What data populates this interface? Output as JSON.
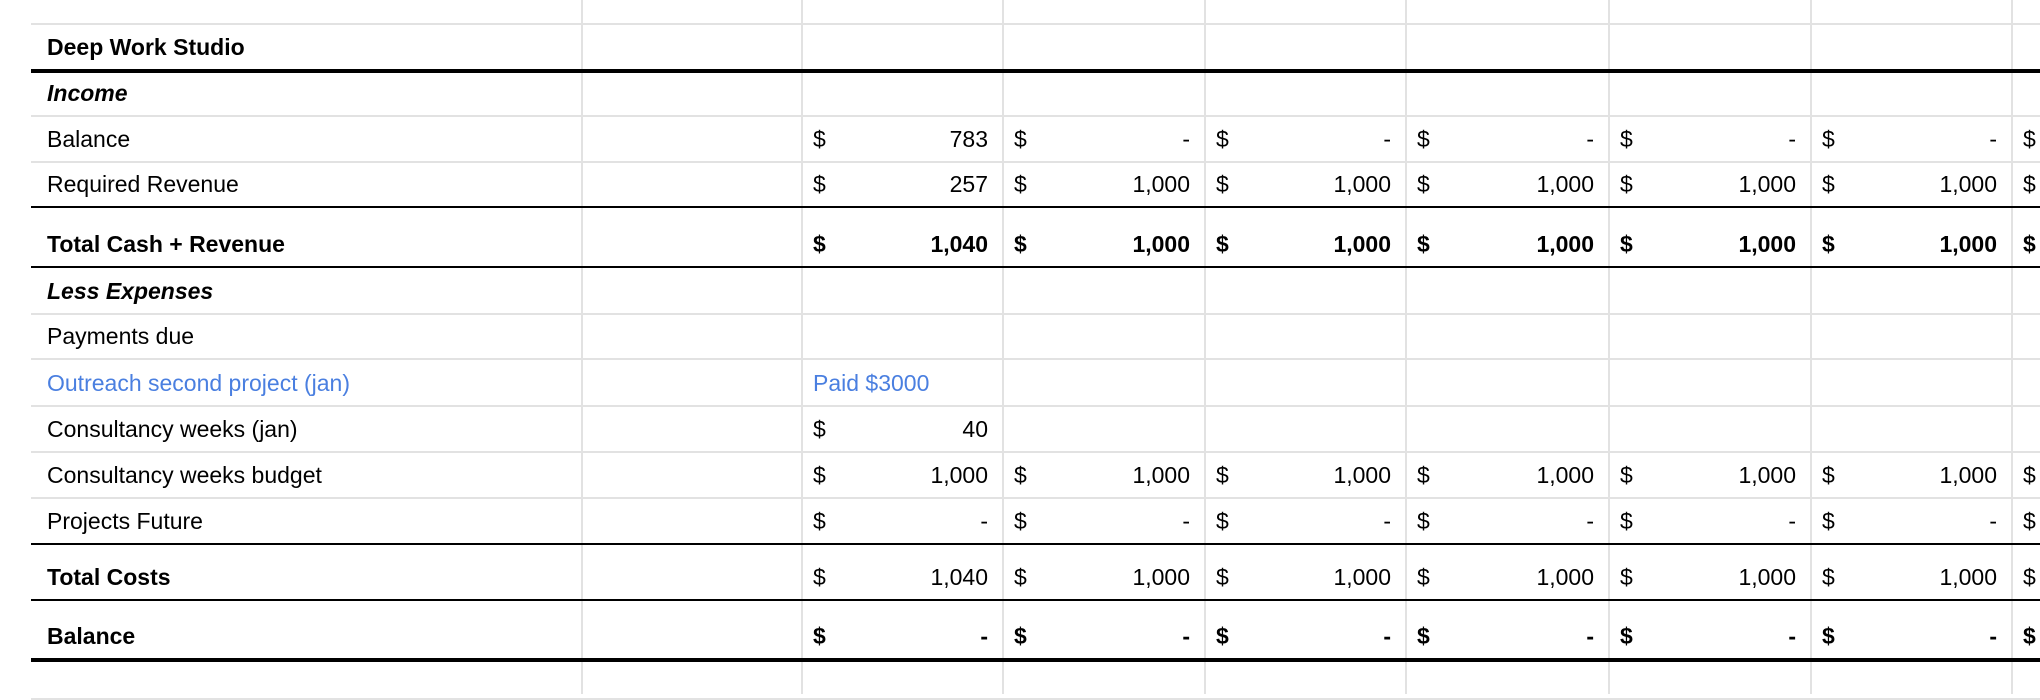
{
  "sheet": {
    "currency_symbol": "$",
    "accent_color": "#4a7fe0",
    "rows": [
      {
        "label": "Deep Work Studio",
        "style": "bold",
        "values": []
      },
      {
        "label": "Income",
        "style": "bold-italic",
        "values": []
      },
      {
        "label": "Balance",
        "style": "normal",
        "values": [
          "783",
          "-",
          "-",
          "-",
          "-",
          "-",
          ""
        ]
      },
      {
        "label": "Required Revenue",
        "style": "normal",
        "values": [
          "257",
          "1,000",
          "1,000",
          "1,000",
          "1,000",
          "1,000",
          ""
        ]
      },
      {
        "label": "Total Cash + Revenue",
        "style": "bold",
        "values": [
          "1,040",
          "1,000",
          "1,000",
          "1,000",
          "1,000",
          "1,000",
          ""
        ]
      },
      {
        "label": "Less Expenses",
        "style": "bold-italic",
        "values": []
      },
      {
        "label": "Payments due",
        "style": "normal",
        "values": []
      },
      {
        "label": "Outreach second project (jan)",
        "style": "blue",
        "note": "Paid $3000",
        "values": []
      },
      {
        "label": "Consultancy weeks (jan)",
        "style": "normal",
        "values": [
          "40"
        ]
      },
      {
        "label": "Consultancy weeks budget",
        "style": "normal",
        "values": [
          "1,000",
          "1,000",
          "1,000",
          "1,000",
          "1,000",
          "1,000",
          ""
        ]
      },
      {
        "label": "Projects Future",
        "style": "normal",
        "values": [
          "-",
          "-",
          "-",
          "-",
          "-",
          "-",
          ""
        ]
      },
      {
        "label": "Total Costs",
        "style": "bold-label",
        "values": [
          "1,040",
          "1,000",
          "1,000",
          "1,000",
          "1,000",
          "1,000",
          ""
        ]
      },
      {
        "label": "Balance",
        "style": "bold",
        "values": [
          "-",
          "-",
          "-",
          "-",
          "-",
          "-",
          ""
        ]
      },
      {
        "label": "",
        "style": "normal",
        "values": []
      }
    ]
  }
}
